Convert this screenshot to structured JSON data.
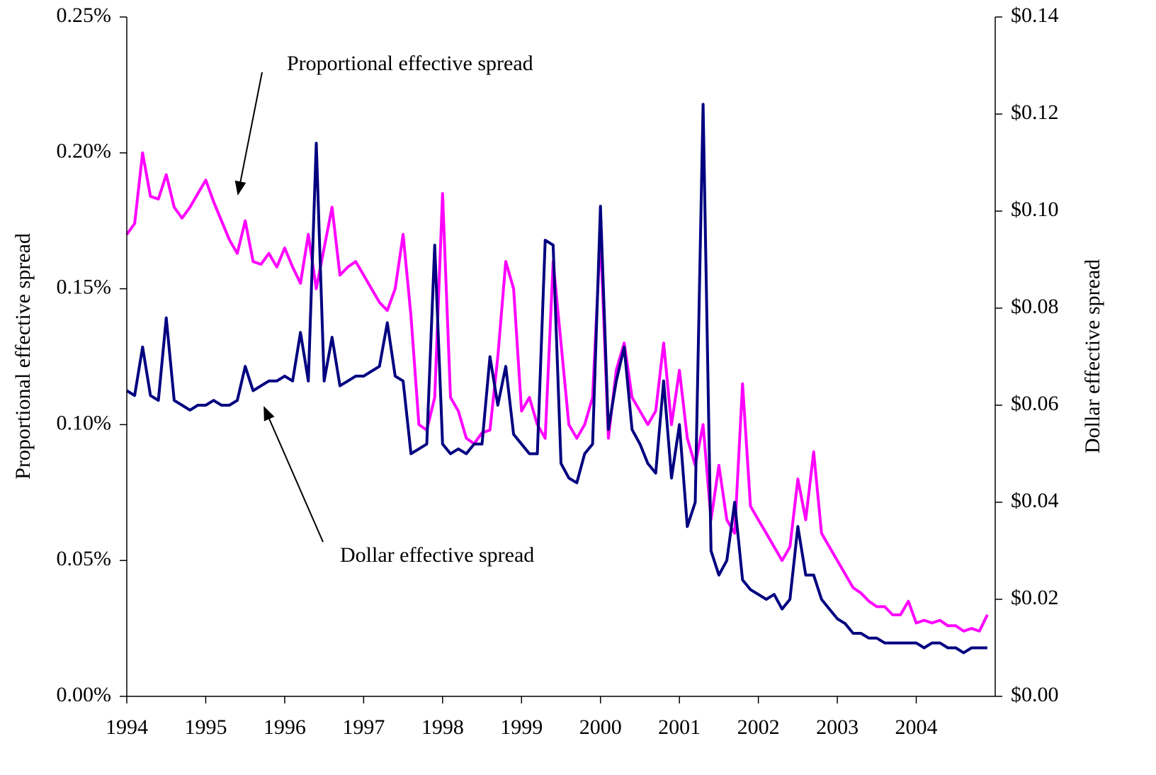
{
  "chart_data": {
    "type": "line",
    "y_label": "Proportional effective spread",
    "y2_label": "Dollar effective spread",
    "annotations": [
      {
        "text": "Proportional effective spread",
        "series": 0
      },
      {
        "text": "Dollar effective spread",
        "series": 1
      }
    ],
    "xlim": [
      1994,
      2005
    ],
    "xticks": [
      1994,
      1995,
      1996,
      1997,
      1998,
      1999,
      2000,
      2001,
      2002,
      2003,
      2004
    ],
    "ylim": [
      0,
      0.25
    ],
    "yticks": [
      {
        "value": 0,
        "label": "0.00%"
      },
      {
        "value": 0.05,
        "label": "0.05%"
      },
      {
        "value": 0.1,
        "label": "0.10%"
      },
      {
        "value": 0.15,
        "label": "0.15%"
      },
      {
        "value": 0.2,
        "label": "0.20%"
      },
      {
        "value": 0.25,
        "label": "0.25%"
      }
    ],
    "y2lim": [
      0,
      0.14
    ],
    "y2ticks": [
      {
        "value": 0,
        "label": "$0.00"
      },
      {
        "value": 0.02,
        "label": "$0.02"
      },
      {
        "value": 0.04,
        "label": "$0.04"
      },
      {
        "value": 0.06,
        "label": "$0.06"
      },
      {
        "value": 0.08,
        "label": "$0.08"
      },
      {
        "value": 0.1,
        "label": "$0.10"
      },
      {
        "value": 0.12,
        "label": "$0.12"
      },
      {
        "value": 0.14,
        "label": "$0.14"
      }
    ],
    "x": [
      1994.0,
      1994.1,
      1994.2,
      1994.3,
      1994.4,
      1994.5,
      1994.6,
      1994.7,
      1994.8,
      1994.9,
      1995.0,
      1995.1,
      1995.2,
      1995.3,
      1995.4,
      1995.5,
      1995.6,
      1995.7,
      1995.8,
      1995.9,
      1996.0,
      1996.1,
      1996.2,
      1996.3,
      1996.4,
      1996.5,
      1996.6,
      1996.7,
      1996.8,
      1996.9,
      1997.0,
      1997.1,
      1997.2,
      1997.3,
      1997.4,
      1997.5,
      1997.6,
      1997.7,
      1997.8,
      1997.9,
      1998.0,
      1998.1,
      1998.2,
      1998.3,
      1998.4,
      1998.5,
      1998.6,
      1998.7,
      1998.8,
      1998.9,
      1999.0,
      1999.1,
      1999.2,
      1999.3,
      1999.4,
      1999.5,
      1999.6,
      1999.7,
      1999.8,
      1999.9,
      2000.0,
      2000.1,
      2000.2,
      2000.3,
      2000.4,
      2000.5,
      2000.6,
      2000.7,
      2000.8,
      2000.9,
      2001.0,
      2001.1,
      2001.2,
      2001.3,
      2001.4,
      2001.5,
      2001.6,
      2001.7,
      2001.8,
      2001.9,
      2002.0,
      2002.1,
      2002.2,
      2002.3,
      2002.4,
      2002.5,
      2002.6,
      2002.7,
      2002.8,
      2002.9,
      2003.0,
      2003.1,
      2003.2,
      2003.3,
      2003.4,
      2003.5,
      2003.6,
      2003.7,
      2003.8,
      2003.9,
      2004.0,
      2004.1,
      2004.2,
      2004.3,
      2004.4,
      2004.5,
      2004.6,
      2004.7,
      2004.8,
      2004.9
    ],
    "series": [
      {
        "name": "Proportional effective spread",
        "color": "#ff00ff",
        "axis": "y",
        "values": [
          0.17,
          0.174,
          0.2,
          0.184,
          0.183,
          0.192,
          0.18,
          0.176,
          0.18,
          0.185,
          0.19,
          0.182,
          0.175,
          0.168,
          0.163,
          0.175,
          0.16,
          0.159,
          0.163,
          0.158,
          0.165,
          0.158,
          0.152,
          0.17,
          0.15,
          0.165,
          0.18,
          0.155,
          0.158,
          0.16,
          0.155,
          0.15,
          0.145,
          0.142,
          0.15,
          0.17,
          0.14,
          0.1,
          0.098,
          0.11,
          0.185,
          0.11,
          0.105,
          0.095,
          0.093,
          0.097,
          0.098,
          0.125,
          0.16,
          0.15,
          0.105,
          0.11,
          0.1,
          0.095,
          0.16,
          0.13,
          0.1,
          0.095,
          0.1,
          0.11,
          0.17,
          0.095,
          0.12,
          0.13,
          0.11,
          0.105,
          0.1,
          0.105,
          0.13,
          0.1,
          0.12,
          0.095,
          0.085,
          0.1,
          0.065,
          0.085,
          0.065,
          0.06,
          0.115,
          0.07,
          0.065,
          0.06,
          0.055,
          0.05,
          0.055,
          0.08,
          0.065,
          0.09,
          0.06,
          0.055,
          0.05,
          0.045,
          0.04,
          0.038,
          0.035,
          0.033,
          0.033,
          0.03,
          0.03,
          0.035,
          0.027,
          0.028,
          0.027,
          0.028,
          0.026,
          0.026,
          0.024,
          0.025,
          0.024,
          0.03
        ]
      },
      {
        "name": "Dollar effective spread",
        "color": "#000080",
        "axis": "y2",
        "values": [
          0.063,
          0.062,
          0.072,
          0.062,
          0.061,
          0.078,
          0.061,
          0.06,
          0.059,
          0.06,
          0.06,
          0.061,
          0.06,
          0.06,
          0.061,
          0.068,
          0.063,
          0.064,
          0.065,
          0.065,
          0.066,
          0.065,
          0.075,
          0.065,
          0.114,
          0.065,
          0.074,
          0.064,
          0.065,
          0.066,
          0.066,
          0.067,
          0.068,
          0.077,
          0.066,
          0.065,
          0.05,
          0.051,
          0.052,
          0.093,
          0.052,
          0.05,
          0.051,
          0.05,
          0.052,
          0.052,
          0.07,
          0.06,
          0.068,
          0.054,
          0.052,
          0.05,
          0.05,
          0.094,
          0.093,
          0.048,
          0.045,
          0.044,
          0.05,
          0.052,
          0.101,
          0.055,
          0.065,
          0.072,
          0.055,
          0.052,
          0.048,
          0.046,
          0.065,
          0.045,
          0.056,
          0.035,
          0.04,
          0.122,
          0.03,
          0.025,
          0.028,
          0.04,
          0.024,
          0.022,
          0.021,
          0.02,
          0.021,
          0.018,
          0.02,
          0.035,
          0.025,
          0.025,
          0.02,
          0.018,
          0.016,
          0.015,
          0.013,
          0.013,
          0.012,
          0.012,
          0.011,
          0.011,
          0.011,
          0.011,
          0.011,
          0.01,
          0.011,
          0.011,
          0.01,
          0.01,
          0.009,
          0.01,
          0.01,
          0.01
        ]
      }
    ]
  }
}
